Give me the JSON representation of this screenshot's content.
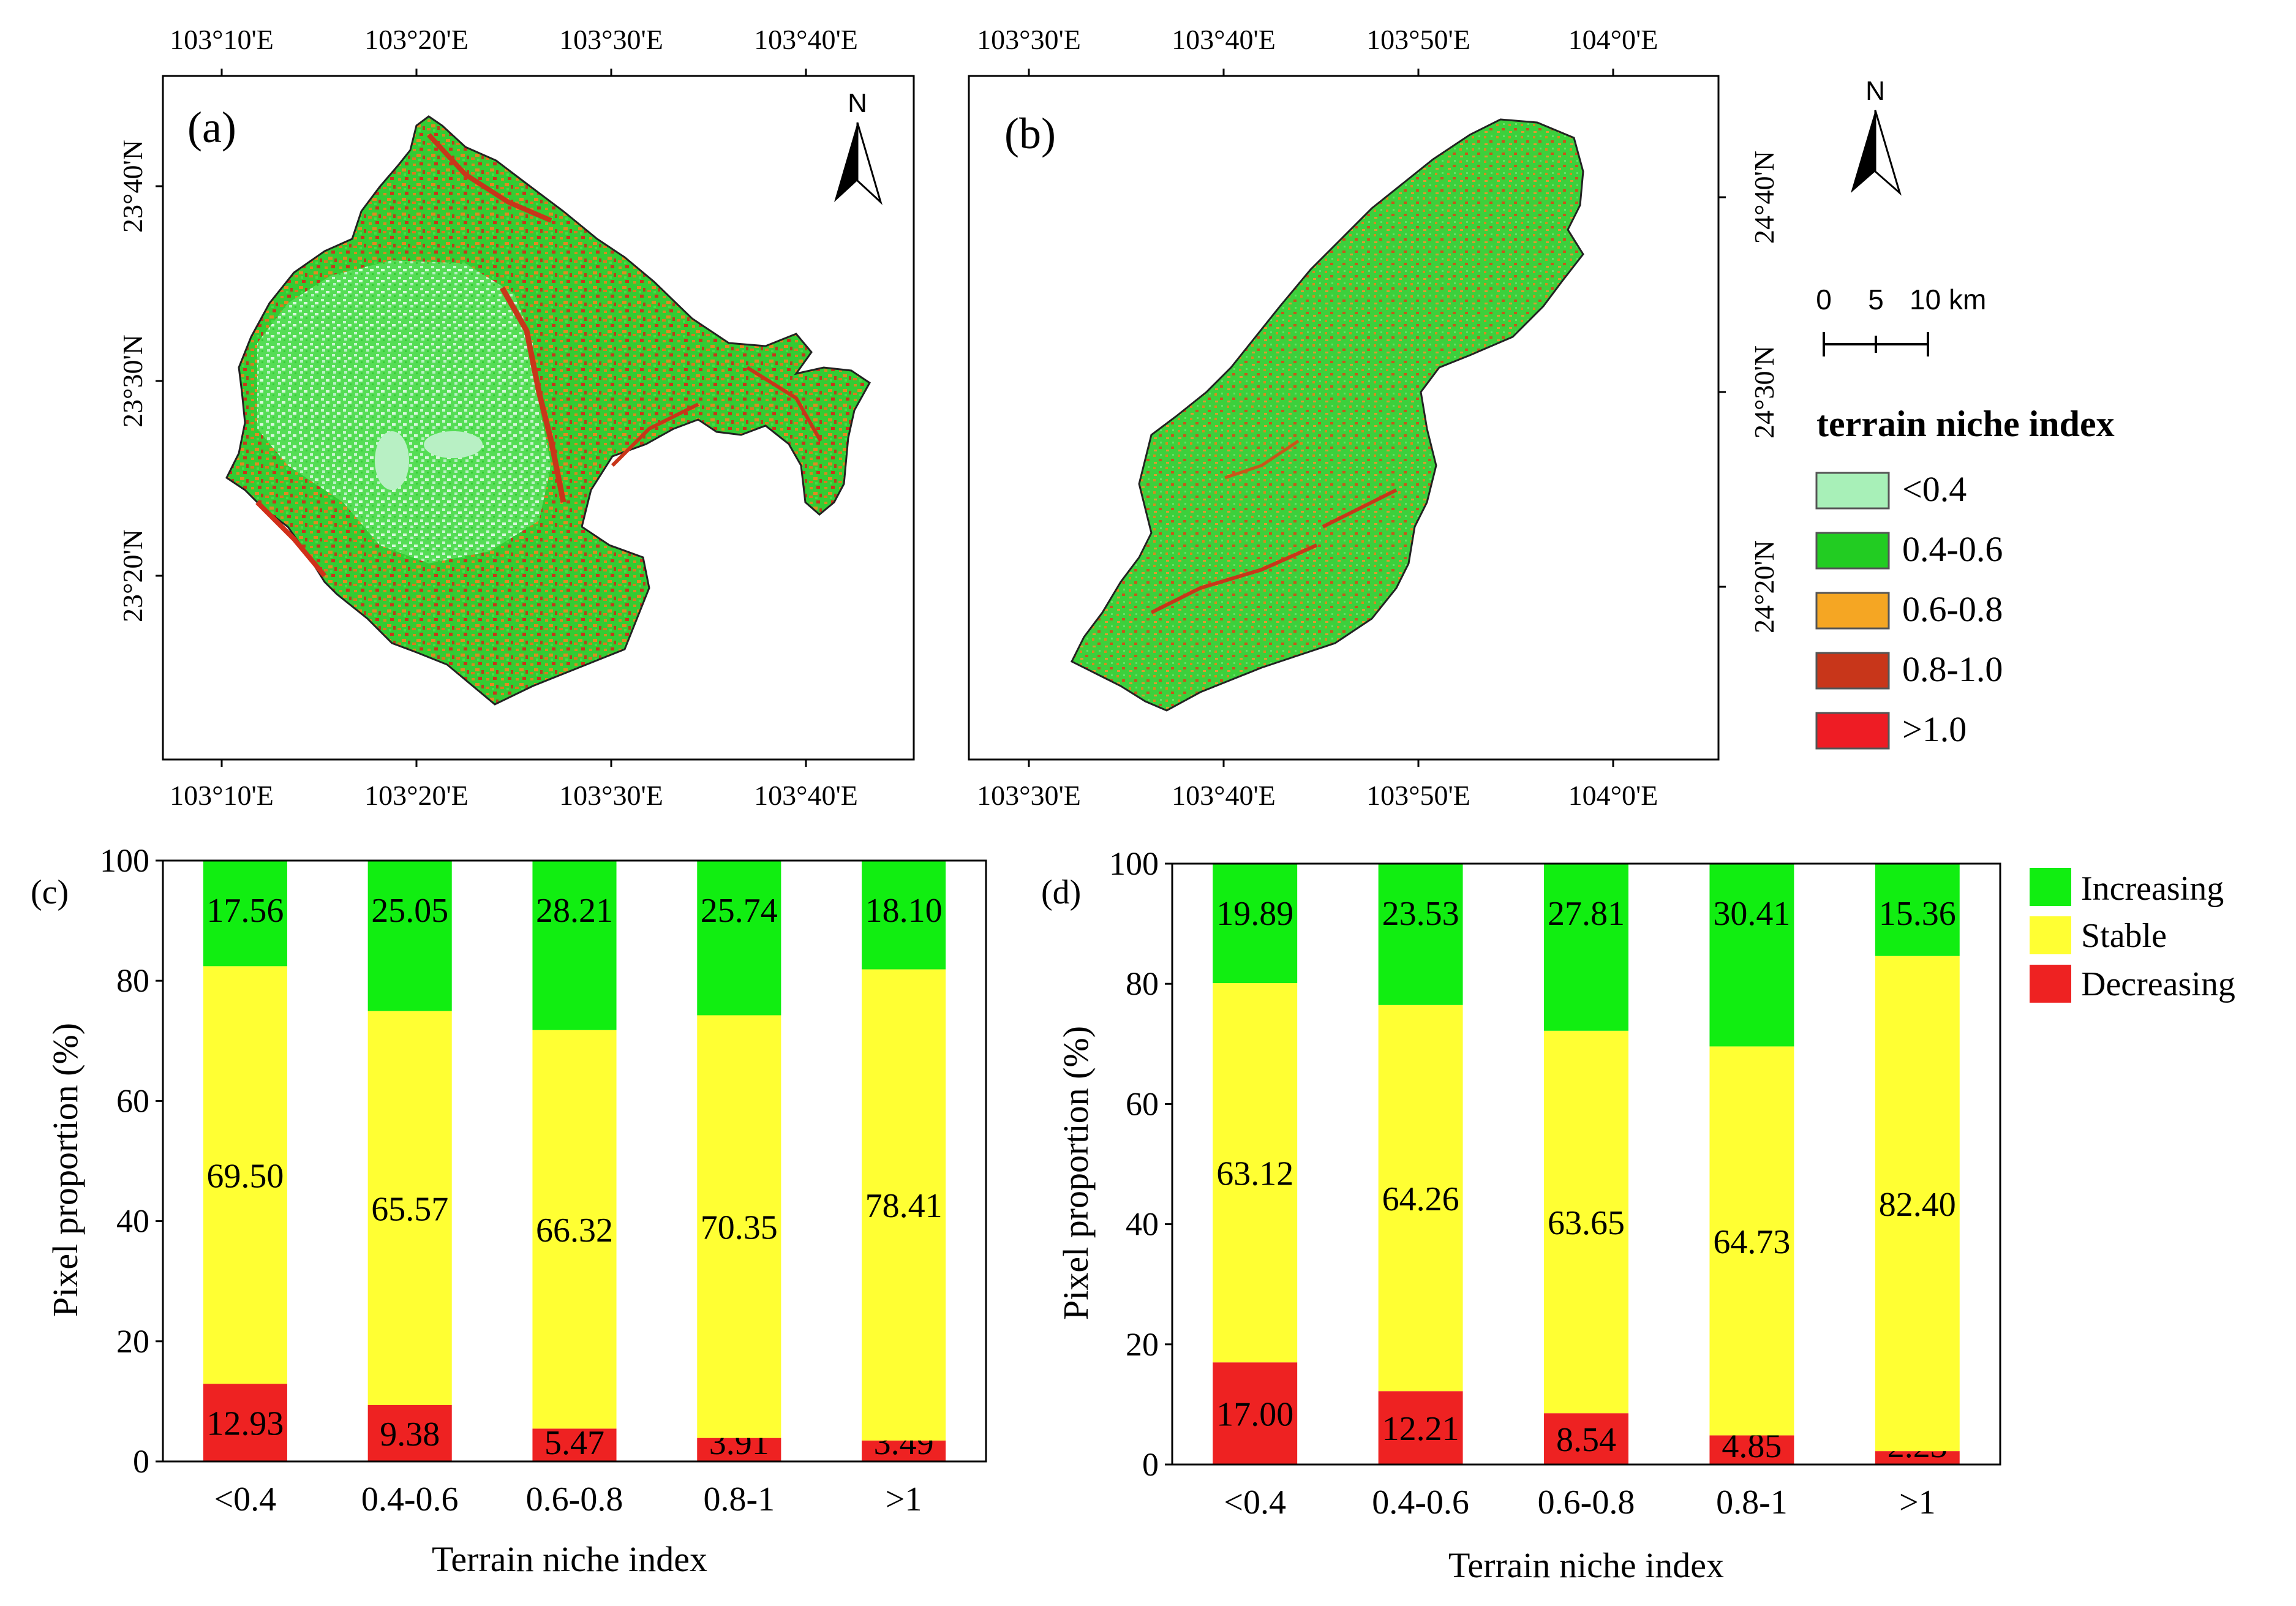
{
  "maps": {
    "a": {
      "label": "(a)",
      "top_ticks": [
        "103°10'E",
        "103°20'E",
        "103°30'E",
        "103°40'E"
      ],
      "bottom_ticks": [
        "103°10'E",
        "103°20'E",
        "103°30'E",
        "103°40'E"
      ],
      "left_ticks": [
        "23°40'N",
        "23°30'N",
        "23°20'N"
      ],
      "north": "N"
    },
    "b": {
      "label": "(b)",
      "top_ticks": [
        "103°30'E",
        "103°40'E",
        "103°50'E",
        "104°0'E"
      ],
      "bottom_ticks": [
        "103°30'E",
        "103°40'E",
        "103°50'E",
        "104°0'E"
      ],
      "right_ticks": [
        "24°40'N",
        "24°30'N",
        "24°20'N"
      ]
    }
  },
  "map_legend": {
    "north": "N",
    "scale_labels": [
      "0",
      "5",
      "10 km"
    ],
    "title": "terrain niche index",
    "items": [
      {
        "label": "<0.4",
        "color": "#a8f0b8"
      },
      {
        "label": "0.4-0.6",
        "color": "#22cc22"
      },
      {
        "label": "0.6-0.8",
        "color": "#f5a623"
      },
      {
        "label": "0.8-1.0",
        "color": "#c8361a"
      },
      {
        "label": ">1.0",
        "color": "#ee1c24"
      }
    ]
  },
  "colors": {
    "increasing": "#11ee11",
    "stable": "#ffff33",
    "decreasing": "#ee2222"
  },
  "chart_legend": [
    "Increasing",
    "Stable",
    "Decreasing"
  ],
  "chart_data": [
    {
      "type": "bar",
      "stacked": true,
      "panel": "(c)",
      "categories": [
        "<0.4",
        "0.4-0.6",
        "0.6-0.8",
        "0.8-1",
        ">1"
      ],
      "series": [
        {
          "name": "Decreasing",
          "values": [
            12.93,
            9.38,
            5.47,
            3.91,
            3.49
          ]
        },
        {
          "name": "Stable",
          "values": [
            69.5,
            65.57,
            66.32,
            70.35,
            78.41
          ]
        },
        {
          "name": "Increasing",
          "values": [
            17.56,
            25.05,
            28.21,
            25.74,
            18.1
          ]
        }
      ],
      "xlabel": "Terrain niche index",
      "ylabel": "Pixel proportion (%)",
      "ylim": [
        0,
        100
      ],
      "yticks": [
        "0",
        "20",
        "40",
        "60",
        "80",
        "100"
      ]
    },
    {
      "type": "bar",
      "stacked": true,
      "panel": "(d)",
      "categories": [
        "<0.4",
        "0.4-0.6",
        "0.6-0.8",
        "0.8-1",
        ">1"
      ],
      "series": [
        {
          "name": "Decreasing",
          "values": [
            17.0,
            12.21,
            8.54,
            4.85,
            2.23
          ]
        },
        {
          "name": "Stable",
          "values": [
            63.12,
            64.26,
            63.65,
            64.73,
            82.4
          ]
        },
        {
          "name": "Increasing",
          "values": [
            19.89,
            23.53,
            27.81,
            30.41,
            15.36
          ]
        }
      ],
      "xlabel": "Terrain niche index",
      "ylabel": "Pixel proportion (%)",
      "ylim": [
        0,
        100
      ],
      "yticks": [
        "0",
        "20",
        "40",
        "60",
        "80",
        "100"
      ]
    }
  ]
}
